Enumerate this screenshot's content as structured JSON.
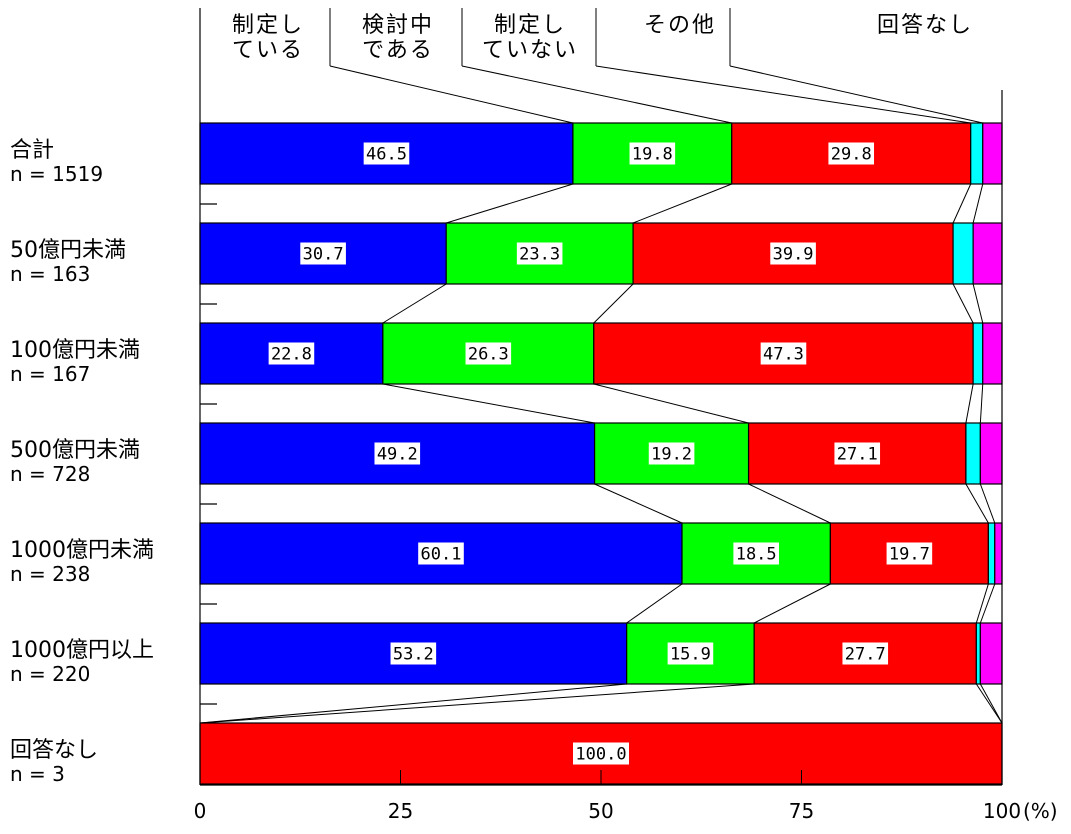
{
  "chart_data": {
    "type": "bar",
    "orientation": "horizontal",
    "stacked": true,
    "xlim": [
      0,
      100
    ],
    "x_ticks": [
      "0",
      "25",
      "50",
      "75",
      "100"
    ],
    "x_unit": "(%)",
    "legend_placement": "top",
    "series": [
      {
        "key": "s1",
        "color": "#0000ff",
        "label_lines": [
          "制定し",
          "ている"
        ]
      },
      {
        "key": "s2",
        "color": "#00ff00",
        "label_lines": [
          "検討中",
          "である"
        ]
      },
      {
        "key": "s3",
        "color": "#ff0000",
        "label_lines": [
          "制定し",
          "ていない"
        ]
      },
      {
        "key": "s4",
        "color": "#00ffff",
        "label_lines": [
          "その他"
        ]
      },
      {
        "key": "s5",
        "color": "#ff00ff",
        "label_lines": [
          "回答なし"
        ]
      }
    ],
    "categories": [
      {
        "name": "合計",
        "n": "n = 1519",
        "values": [
          46.5,
          19.8,
          29.8,
          1.5,
          2.4
        ],
        "labels": [
          "46.5",
          "19.8",
          "29.8",
          "",
          ""
        ]
      },
      {
        "name": "50億円未満",
        "n": "n = 163",
        "values": [
          30.7,
          23.3,
          39.9,
          2.5,
          3.6
        ],
        "labels": [
          "30.7",
          "23.3",
          "39.9",
          "",
          ""
        ]
      },
      {
        "name": "100億円未満",
        "n": "n = 167",
        "values": [
          22.8,
          26.3,
          47.3,
          1.2,
          2.4
        ],
        "labels": [
          "22.8",
          "26.3",
          "47.3",
          "",
          ""
        ]
      },
      {
        "name": "500億円未満",
        "n": "n = 728",
        "values": [
          49.2,
          19.2,
          27.1,
          1.8,
          2.7
        ],
        "labels": [
          "49.2",
          "19.2",
          "27.1",
          "",
          ""
        ]
      },
      {
        "name": "1000億円未満",
        "n": "n = 238",
        "values": [
          60.1,
          18.5,
          19.7,
          0.8,
          0.9
        ],
        "labels": [
          "60.1",
          "18.5",
          "19.7",
          "",
          ""
        ]
      },
      {
        "name": "1000億円以上",
        "n": "n = 220",
        "values": [
          53.2,
          15.9,
          27.7,
          0.5,
          2.7
        ],
        "labels": [
          "53.2",
          "15.9",
          "27.7",
          "",
          ""
        ]
      },
      {
        "name": "回答なし",
        "n": "n = 3",
        "values": [
          0,
          0,
          100.0,
          0,
          0
        ],
        "labels": [
          "",
          "",
          "100.0",
          "",
          ""
        ]
      }
    ]
  }
}
